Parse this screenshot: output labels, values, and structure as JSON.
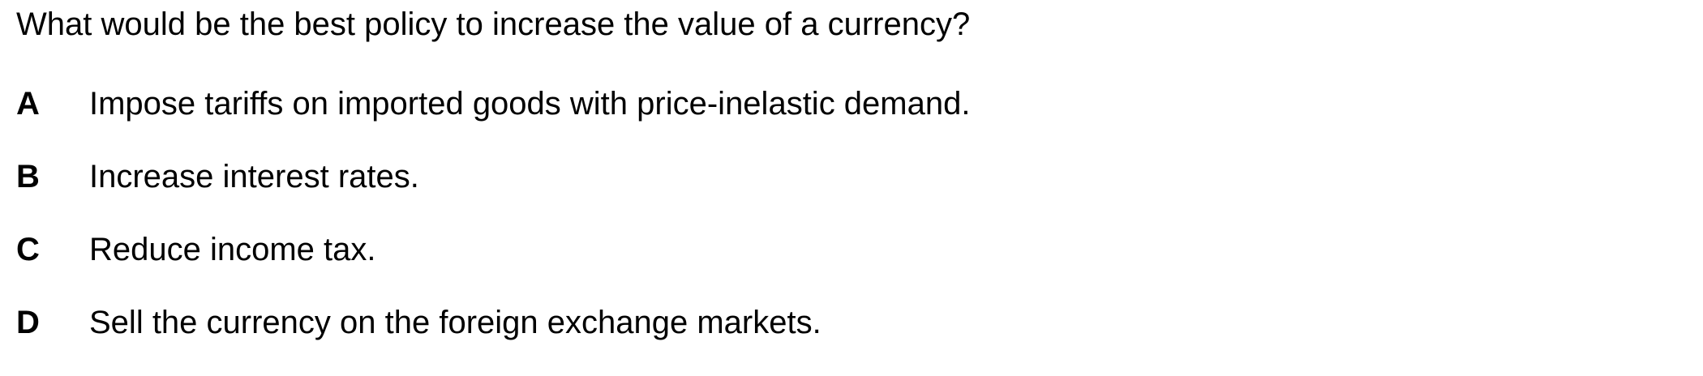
{
  "question": {
    "text": "What would be the best policy to increase the value of a currency?"
  },
  "options": [
    {
      "letter": "A",
      "text": "Impose tariffs on imported goods with price-inelastic demand."
    },
    {
      "letter": "B",
      "text": "Increase interest rates."
    },
    {
      "letter": "C",
      "text": "Reduce income tax."
    },
    {
      "letter": "D",
      "text": "Sell the currency on the foreign exchange markets."
    }
  ]
}
